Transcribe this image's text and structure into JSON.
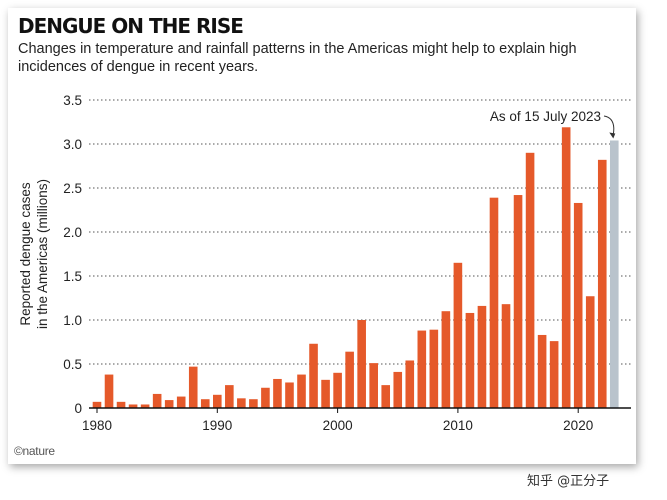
{
  "title": "DENGUE ON THE RISE",
  "subtitle": "Changes in temperature and rainfall patterns in the Americas might help to explain high incidences of dengue in recent years.",
  "credit": "©nature",
  "watermark": "知乎 @正分子",
  "colors": {
    "bar": "#e5592a",
    "highlight": "#b9c3cc",
    "grid": "#555555",
    "text": "#222222"
  },
  "chart_data": {
    "type": "bar",
    "title": "DENGUE ON THE RISE",
    "xlabel": "",
    "ylabel": "Reported dengue cases in the Americas (millions)",
    "ylabel_lines": [
      "Reported dengue cases",
      "in the Americas (millions)"
    ],
    "ylim": [
      0,
      3.5
    ],
    "yticks": [
      0,
      0.5,
      1.0,
      1.5,
      2.0,
      2.5,
      3.0,
      3.5
    ],
    "ytick_labels": [
      "0",
      "0.5",
      "1.0",
      "1.5",
      "2.0",
      "2.5",
      "3.0",
      "3.5"
    ],
    "xticks": [
      1980,
      1990,
      2000,
      2010,
      2020
    ],
    "grid": "horizontal-dotted",
    "categories": [
      1980,
      1981,
      1982,
      1983,
      1984,
      1985,
      1986,
      1987,
      1988,
      1989,
      1990,
      1991,
      1992,
      1993,
      1994,
      1995,
      1996,
      1997,
      1998,
      1999,
      2000,
      2001,
      2002,
      2003,
      2004,
      2005,
      2006,
      2007,
      2008,
      2009,
      2010,
      2011,
      2012,
      2013,
      2014,
      2015,
      2016,
      2017,
      2018,
      2019,
      2020,
      2021,
      2022,
      2023
    ],
    "values": [
      0.07,
      0.38,
      0.07,
      0.04,
      0.04,
      0.16,
      0.09,
      0.13,
      0.47,
      0.1,
      0.15,
      0.26,
      0.11,
      0.1,
      0.23,
      0.33,
      0.29,
      0.38,
      0.73,
      0.32,
      0.4,
      0.64,
      1.0,
      0.51,
      0.26,
      0.41,
      0.54,
      0.88,
      0.89,
      1.1,
      1.65,
      1.08,
      1.16,
      2.39,
      1.18,
      2.42,
      2.9,
      0.83,
      0.76,
      3.19,
      2.33,
      1.27,
      2.82,
      3.04
    ],
    "highlight": {
      "year": 2023,
      "label": "As of 15 July 2023"
    }
  }
}
